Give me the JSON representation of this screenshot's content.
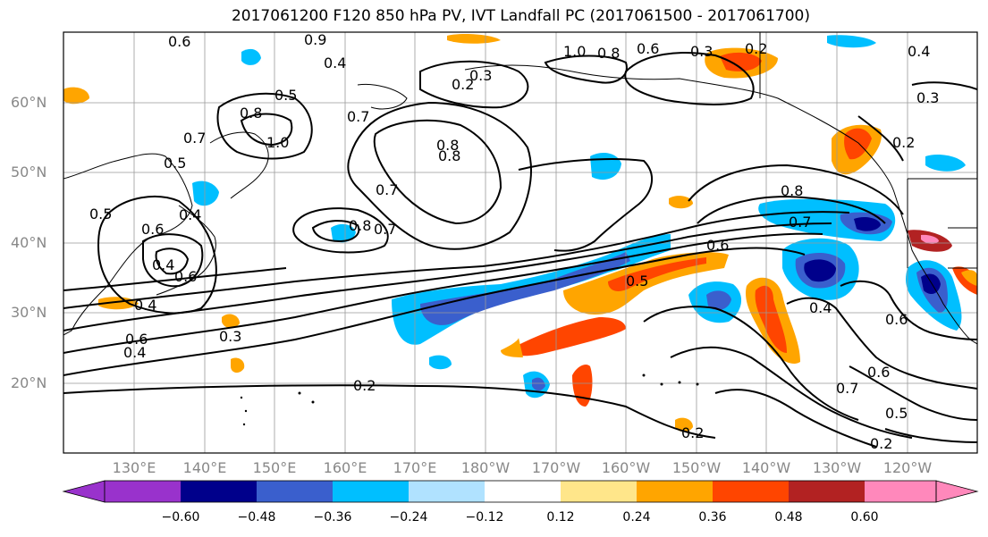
{
  "title": "2017061200 F120 850 hPa PV, IVT Landfall PC (2017061500 - 2017061700)",
  "lat_labels": [
    "60°N",
    "50°N",
    "40°N",
    "30°N",
    "20°N"
  ],
  "lon_labels": [
    "130°E",
    "140°E",
    "150°E",
    "160°E",
    "170°E",
    "180°W",
    "170°W",
    "160°W",
    "150°W",
    "140°W",
    "130°W",
    "120°W"
  ],
  "contour_labels": [
    "0.6",
    "0.9",
    "0.4",
    "0.5",
    "0.8",
    "1.0",
    "0.7",
    "0.5",
    "0.4",
    "0.6",
    "0.4",
    "0.6",
    "0.7",
    "0.8",
    "0.8",
    "0.7",
    "0.6",
    "0.4",
    "0.3",
    "0.5",
    "0.4",
    "0.2",
    "0.7",
    "0.8",
    "0.2",
    "0.3",
    "1.0",
    "0.8",
    "0.6",
    "0.3",
    "0.2",
    "0.4",
    "0.2",
    "0.8",
    "0.7",
    "0.6",
    "0.5",
    "0.4",
    "0.6",
    "0.7",
    "0.6",
    "0.5",
    "0.2",
    "0.2",
    "0.3"
  ],
  "colorbar": {
    "ticks": [
      "−0.60",
      "−0.48",
      "−0.36",
      "−0.24",
      "−0.12",
      "0.12",
      "0.24",
      "0.36",
      "0.48",
      "0.60"
    ],
    "colors": [
      "#9932cc",
      "#00008b",
      "#3a5fcd",
      "#00bfff",
      "#b0e2ff",
      "#ffffff",
      "#ffe68a",
      "#ffa500",
      "#ff4500",
      "#b22222",
      "#ff88bb"
    ]
  }
}
